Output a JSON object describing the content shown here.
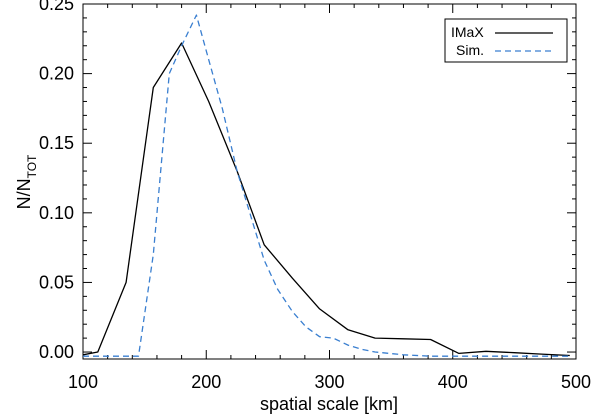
{
  "chart_data": {
    "type": "line",
    "xlabel": "spatial scale [km]",
    "ylabel_main": "N/N",
    "ylabel_sub": "TOT",
    "xlim": [
      100,
      500
    ],
    "ylim": [
      -0.005,
      0.25
    ],
    "xticks": [
      100,
      200,
      300,
      400,
      500
    ],
    "yticks": [
      0.0,
      0.05,
      0.1,
      0.15,
      0.2,
      0.25
    ],
    "ytick_labels": [
      "0.00",
      "0.05",
      "0.10",
      "0.15",
      "0.20",
      "0.25"
    ],
    "grid": false,
    "legend_position": "top-right",
    "series": [
      {
        "name": "IMaX",
        "style": "solid",
        "color": "#000000",
        "x": [
          100,
          112,
          135,
          157,
          180,
          202,
          225,
          247,
          270,
          292,
          315,
          337,
          360,
          382,
          405,
          427,
          450,
          472,
          495
        ],
        "y": [
          -0.002,
          0.0,
          0.05,
          0.19,
          0.222,
          0.18,
          0.13,
          0.077,
          0.053,
          0.031,
          0.016,
          0.01,
          0.0095,
          0.009,
          -0.001,
          0.0005,
          -0.0005,
          -0.0015,
          -0.0025
        ]
      },
      {
        "name": "Sim.",
        "style": "dashed",
        "color": "#3a7fd0",
        "x": [
          100,
          112,
          135,
          145,
          157,
          170,
          180,
          192,
          202,
          213,
          225,
          237,
          247,
          258,
          270,
          281,
          292,
          303,
          315,
          326,
          337,
          360,
          382,
          405,
          427,
          450,
          472,
          495
        ],
        "y": [
          -0.003,
          -0.003,
          -0.003,
          -0.003,
          0.07,
          0.2,
          0.22,
          0.242,
          0.21,
          0.175,
          0.13,
          0.095,
          0.066,
          0.045,
          0.029,
          0.018,
          0.011,
          0.01,
          0.005,
          0.002,
          0.0,
          -0.002,
          -0.003,
          -0.003,
          -0.003,
          -0.003,
          -0.003,
          -0.003
        ]
      }
    ]
  }
}
